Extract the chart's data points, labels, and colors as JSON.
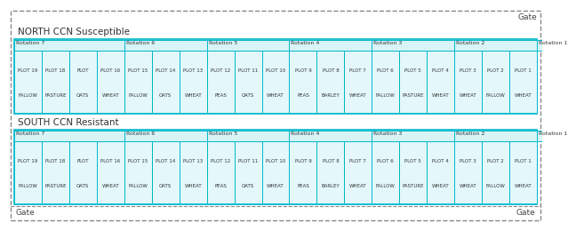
{
  "outer_bg": "#ffffff",
  "outer_border_color": "#888888",
  "section_bg": "#d8f4f7",
  "rot_row_bg": "#d8f4f7",
  "plot_bg": "#e4f8fb",
  "border_color": "#00b8cc",
  "text_color": "#333333",
  "gate_color": "#444444",
  "north_title": "NORTH CCN Susceptible",
  "south_title": "SOUTH CCN Resistant",
  "rotations": [
    "Rotation 7",
    "Rotation 6",
    "Rotation 5",
    "Rotation 4",
    "Rotation 3",
    "Rotation 2",
    "Rotation 1"
  ],
  "rotation_spans": [
    4,
    3,
    3,
    3,
    3,
    3,
    1
  ],
  "plots": [
    {
      "num": "PLOT 19",
      "crop": "FALLOW"
    },
    {
      "num": "PLOT 18",
      "crop": "PASTURE"
    },
    {
      "num": "PLOT",
      "crop": "OATS"
    },
    {
      "num": "PLOT 16",
      "crop": "WHEAT"
    },
    {
      "num": "PLOT 15",
      "crop": "FALLOW"
    },
    {
      "num": "PLOT 14",
      "crop": "OATS"
    },
    {
      "num": "PLOT 13",
      "crop": "WHEAT"
    },
    {
      "num": "PLOT 12",
      "crop": "PEAS"
    },
    {
      "num": "PLOT 11",
      "crop": "OATS"
    },
    {
      "num": "PLOT 10",
      "crop": "WHEAT"
    },
    {
      "num": "PLOT 9",
      "crop": "PEAS"
    },
    {
      "num": "PLOT 8",
      "crop": "BARLEY"
    },
    {
      "num": "PLOT 7",
      "crop": "WHEAT"
    },
    {
      "num": "PLOT 6",
      "crop": "FALLOW"
    },
    {
      "num": "PLOT 5",
      "crop": "PASTURE"
    },
    {
      "num": "PLOT 4",
      "crop": "WHEAT"
    },
    {
      "num": "PLOT 3",
      "crop": "WHEAT"
    },
    {
      "num": "PLOT 2",
      "crop": "FALLOW"
    },
    {
      "num": "PLOT 1",
      "crop": "WHEAT"
    }
  ]
}
